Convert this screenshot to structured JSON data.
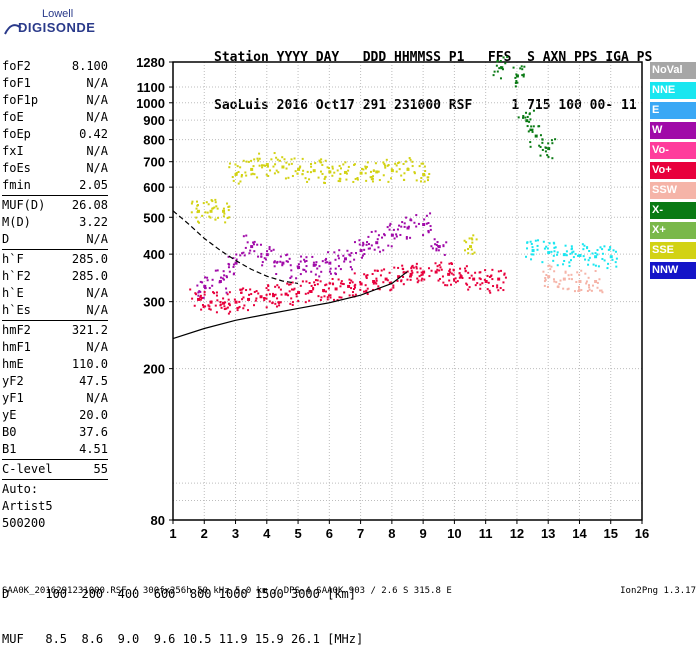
{
  "logo": {
    "brand": "Lowell",
    "product": "DIGISONDE"
  },
  "header": {
    "labels": "Station YYYY DAY   DDD HHMMSS P1   FFS  S AXN PPS IGA PS",
    "values": "SaoLuis 2016 Oct17 291 231000 RSF     1 715 100 00- 11"
  },
  "params": {
    "group1": [
      {
        "name": "foF2",
        "value": "8.100"
      },
      {
        "name": "foF1",
        "value": "N/A"
      },
      {
        "name": "foF1p",
        "value": "N/A"
      },
      {
        "name": "foE",
        "value": "N/A"
      },
      {
        "name": "foEp",
        "value": "0.42"
      },
      {
        "name": "fxI",
        "value": "N/A"
      },
      {
        "name": "foEs",
        "value": "N/A"
      },
      {
        "name": "fmin",
        "value": "2.05"
      }
    ],
    "group2": [
      {
        "name": "MUF(D)",
        "value": "26.08"
      },
      {
        "name": "M(D)",
        "value": "3.22"
      },
      {
        "name": "D",
        "value": "N/A"
      }
    ],
    "group3": [
      {
        "name": "h`F",
        "value": "285.0"
      },
      {
        "name": "h`F2",
        "value": "285.0"
      },
      {
        "name": "h`E",
        "value": "N/A"
      },
      {
        "name": "h`Es",
        "value": "N/A"
      }
    ],
    "group4": [
      {
        "name": "hmF2",
        "value": "321.2"
      },
      {
        "name": "hmF1",
        "value": "N/A"
      },
      {
        "name": "hmE",
        "value": "110.0"
      },
      {
        "name": "yF2",
        "value": "47.5"
      },
      {
        "name": "yF1",
        "value": "N/A"
      },
      {
        "name": "yE",
        "value": "20.0"
      },
      {
        "name": "B0",
        "value": "37.6"
      },
      {
        "name": "B1",
        "value": "4.51"
      }
    ],
    "group5": [
      {
        "name": "C-level",
        "value": "55"
      }
    ],
    "auto": [
      "Auto:",
      "Artist5",
      "500200"
    ]
  },
  "muf_table": {
    "d_row": "D     100  200  400  600  800 1000 1500 3000 [km]",
    "muf_row": "MUF   8.5  8.6  9.0  9.6 10.5 11.9 15.9 26.1 [MHz]"
  },
  "footer": {
    "left": "SAA0K_2016291231000.RSF / 300fx256h 50 kHz 5.0 km / DPS-4 SAA0K 903 / 2.6 S 315.8 E",
    "right": "Ion2Png 1.3.17"
  },
  "legend": [
    {
      "label": "NoVal",
      "color": "#a6a6a6"
    },
    {
      "label": "NNE",
      "color": "#19e6f0"
    },
    {
      "label": "E",
      "color": "#3aa8f5"
    },
    {
      "label": "W",
      "color": "#a00aa8"
    },
    {
      "label": "Vo-",
      "color": "#ff3c9c"
    },
    {
      "label": "Vo+",
      "color": "#e8003c"
    },
    {
      "label": "SSW",
      "color": "#f5b4a8"
    },
    {
      "label": "X-",
      "color": "#0a7a14"
    },
    {
      "label": "X+",
      "color": "#7ab84a"
    },
    {
      "label": "SSE",
      "color": "#d2d214"
    },
    {
      "label": "NNW",
      "color": "#1414c8"
    }
  ],
  "chart_data": {
    "type": "scatter",
    "title": "",
    "xlabel": "",
    "ylabel": "",
    "x_scale": "linear",
    "y_scale": "log",
    "xlim": [
      1,
      16
    ],
    "ylim": [
      80,
      1280
    ],
    "x_ticks": [
      1,
      2,
      3,
      4,
      5,
      6,
      7,
      8,
      9,
      10,
      11,
      12,
      13,
      14,
      15,
      16
    ],
    "y_ticks": [
      80,
      90,
      100,
      200,
      300,
      400,
      500,
      600,
      700,
      800,
      900,
      1000,
      1100,
      1280
    ],
    "y_tick_labels": [
      80,
      200,
      300,
      400,
      500,
      600,
      700,
      800,
      900,
      1000,
      1100,
      1280
    ],
    "grid": true,
    "series": [
      {
        "color": "#e8003c",
        "x": [
          1.8,
          2.2,
          2.6,
          3.0,
          3.4,
          3.8,
          4.2,
          4.6,
          5.0,
          5.4,
          5.8,
          6.2,
          6.6,
          7.0,
          7.4,
          7.8,
          8.2,
          8.6,
          9.0,
          9.4,
          9.8,
          10.2,
          10.6,
          11.0,
          11.4
        ],
        "y": [
          305,
          300,
          298,
          300,
          305,
          310,
          312,
          315,
          318,
          320,
          322,
          325,
          330,
          335,
          340,
          345,
          350,
          355,
          360,
          360,
          355,
          350,
          345,
          340,
          345
        ]
      },
      {
        "color": "#a00aa8",
        "x": [
          2.0,
          2.5,
          3.0,
          3.5,
          4.0,
          4.5,
          5.0,
          5.5,
          6.0,
          6.5,
          7.0,
          7.5,
          8.0,
          8.5,
          9.0,
          9.5
        ],
        "y": [
          330,
          340,
          380,
          420,
          400,
          380,
          370,
          375,
          380,
          390,
          410,
          430,
          450,
          470,
          480,
          420
        ]
      },
      {
        "color": "#d2d214",
        "x": [
          1.8,
          2.2,
          2.6,
          3.0,
          3.5,
          4.0,
          4.5,
          5.0,
          5.5,
          6.0,
          6.5,
          7.0,
          7.5,
          8.0,
          8.5,
          9.0,
          10.5
        ],
        "y": [
          520,
          520,
          520,
          650,
          670,
          690,
          680,
          670,
          665,
          660,
          658,
          655,
          660,
          665,
          670,
          650,
          420
        ]
      },
      {
        "color": "#19e6f0",
        "x": [
          12.5,
          13.0,
          13.5,
          14.0,
          14.5,
          15.0
        ],
        "y": [
          410,
          405,
          400,
          398,
          395,
          395
        ]
      },
      {
        "color": "#0a7a14",
        "x": [
          11.5,
          12.0,
          12.3,
          12.6,
          13.0
        ],
        "y": [
          1240,
          1180,
          900,
          820,
          760
        ]
      },
      {
        "color": "#f5b4a8",
        "x": [
          13.0,
          13.5,
          14.0,
          14.5
        ],
        "y": [
          350,
          345,
          340,
          340
        ]
      }
    ],
    "profile_line": {
      "x": [
        1.0,
        2,
        3,
        4,
        5,
        6,
        7,
        8,
        8.5
      ],
      "y": [
        240,
        255,
        268,
        278,
        288,
        298,
        312,
        335,
        360
      ]
    },
    "virtual_height_line": {
      "x": [
        1.0,
        1.5,
        2.0,
        2.5,
        3.0,
        3.5,
        4.0,
        4.5,
        5.0
      ],
      "y": [
        520,
        480,
        440,
        410,
        385,
        365,
        350,
        340,
        335
      ]
    }
  }
}
